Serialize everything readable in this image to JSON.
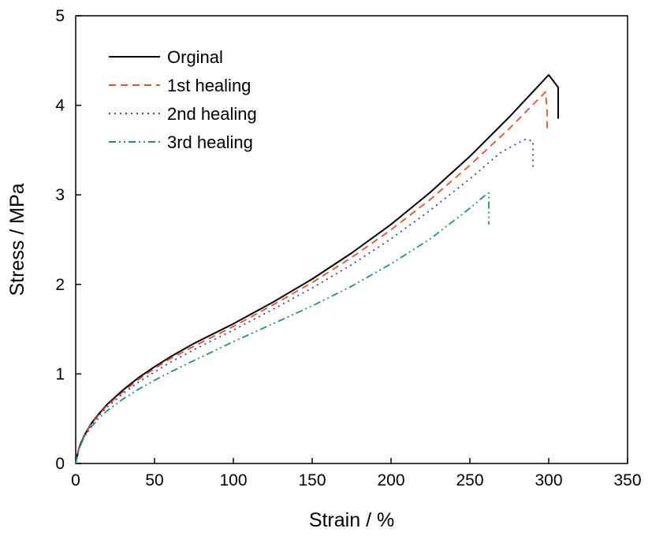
{
  "chart_data": {
    "type": "line",
    "title": "",
    "xlabel": "Strain / %",
    "ylabel": "Stress / MPa",
    "xlim": [
      0,
      350
    ],
    "ylim": [
      0,
      5
    ],
    "xticks": [
      0,
      50,
      100,
      150,
      200,
      250,
      300,
      350
    ],
    "yticks": [
      0,
      1,
      2,
      3,
      4,
      5
    ],
    "grid": false,
    "legend_position": "top-left",
    "series": [
      {
        "name": "Orginal",
        "color": "#000000",
        "dash": "solid",
        "x": [
          0,
          2,
          5,
          10,
          15,
          20,
          30,
          40,
          50,
          60,
          75,
          100,
          125,
          150,
          175,
          200,
          225,
          250,
          275,
          300,
          306,
          306
        ],
        "y": [
          0,
          0.17,
          0.3,
          0.45,
          0.56,
          0.66,
          0.82,
          0.96,
          1.08,
          1.19,
          1.34,
          1.56,
          1.8,
          2.06,
          2.35,
          2.67,
          3.03,
          3.43,
          3.87,
          4.34,
          4.2,
          3.85
        ]
      },
      {
        "name": "1st healing",
        "color": "#e8502a",
        "dash": "dashed",
        "x": [
          0,
          2,
          5,
          10,
          15,
          20,
          30,
          40,
          50,
          60,
          75,
          100,
          125,
          150,
          175,
          200,
          225,
          250,
          275,
          298,
          299,
          299
        ],
        "y": [
          0,
          0.17,
          0.3,
          0.44,
          0.55,
          0.65,
          0.8,
          0.94,
          1.06,
          1.17,
          1.31,
          1.53,
          1.77,
          2.02,
          2.3,
          2.61,
          2.95,
          3.33,
          3.74,
          4.15,
          3.95,
          3.72
        ]
      },
      {
        "name": "2nd healing",
        "color": "#3a3fb5",
        "dash": "dotted",
        "x": [
          0,
          2,
          5,
          10,
          15,
          20,
          30,
          40,
          50,
          60,
          75,
          100,
          125,
          150,
          175,
          200,
          225,
          250,
          270,
          285,
          290,
          290
        ],
        "y": [
          0,
          0.16,
          0.29,
          0.43,
          0.54,
          0.63,
          0.78,
          0.91,
          1.02,
          1.13,
          1.27,
          1.49,
          1.72,
          1.96,
          2.22,
          2.51,
          2.83,
          3.18,
          3.48,
          3.62,
          3.6,
          3.28
        ]
      },
      {
        "name": "3rd healing",
        "color": "#2a8a8a",
        "dash": "dashdot",
        "x": [
          0,
          2,
          5,
          10,
          15,
          20,
          30,
          40,
          50,
          60,
          75,
          100,
          125,
          150,
          175,
          200,
          225,
          250,
          260,
          262,
          262
        ],
        "y": [
          0,
          0.16,
          0.28,
          0.41,
          0.51,
          0.59,
          0.72,
          0.83,
          0.93,
          1.02,
          1.15,
          1.36,
          1.56,
          1.76,
          1.98,
          2.23,
          2.51,
          2.85,
          3.0,
          3.02,
          2.67
        ]
      }
    ]
  }
}
